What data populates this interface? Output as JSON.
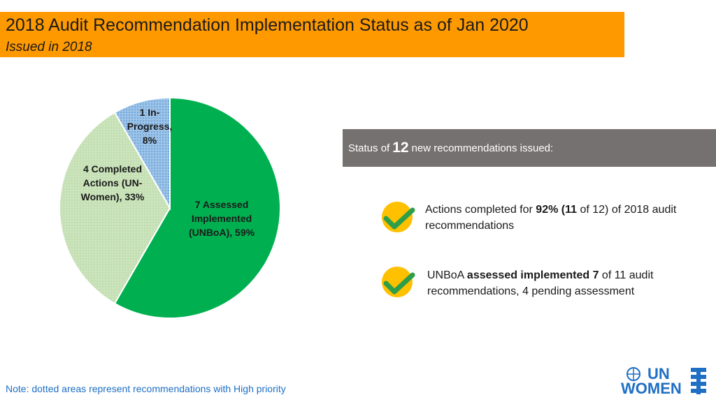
{
  "header": {
    "title": "2018 Audit Recommendation Implementation Status as of Jan 2020",
    "subtitle": "Issued in 2018",
    "bar_color": "#FF9900"
  },
  "chart_data": {
    "type": "pie",
    "categories": [
      "7 Assessed Implemented (UNBoA), 59%",
      "4 Completed Actions (UN-Women), 33%",
      "1 In-Progress, 8%"
    ],
    "values": [
      7,
      4,
      1
    ],
    "percentages": [
      59,
      33,
      8
    ],
    "colors": [
      "#00B050",
      "#C5E0B4",
      "#9DC3E6"
    ],
    "labels": [
      {
        "line1": "7 Assessed",
        "line2": "Implemented",
        "line3": "(UNBoA), 59%"
      },
      {
        "line1": "4 Completed",
        "line2": "Actions (UN-",
        "line3": "Women), 33%"
      },
      {
        "line1": "1 In-",
        "line2": "Progress,",
        "line3": "8%"
      }
    ]
  },
  "status": {
    "prefix": "Status of",
    "count": "12",
    "suffix": "new recommendations issued:",
    "bg_color": "#767171"
  },
  "items": [
    {
      "pre": "Actions completed for ",
      "bold": "92% (11",
      "post": " of 12) of 2018 audit recommendations",
      "icon": "check-icon"
    },
    {
      "pre": "UNBoA ",
      "bold": "assessed implemented 7",
      "post": " of 11 audit recommendations, 4 pending assessment",
      "icon": "check-icon"
    }
  ],
  "note": "Note: dotted areas represent recommendations with High priority",
  "logo": {
    "line1": "UN",
    "line2": "WOMEN",
    "color": "#1F6FC5"
  }
}
